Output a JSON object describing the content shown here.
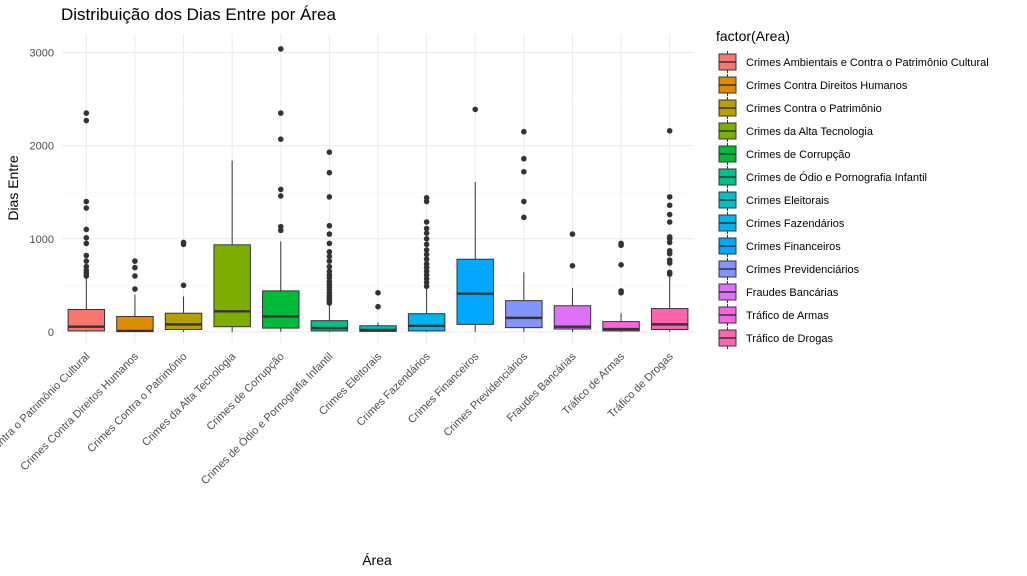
{
  "chart_data": {
    "type": "boxplot",
    "title": "Distribuição dos Dias Entre por Área",
    "xlabel": "Área",
    "ylabel": "Dias Entre",
    "ylim": [
      -120,
      3200
    ],
    "yticks": [
      0,
      1000,
      2000,
      3000
    ],
    "grid": true,
    "legend": {
      "title": "factor(Area)",
      "position": "right"
    },
    "categories": [
      "Crimes Ambientais e Contra o Patrimônio Cultural",
      "Crimes Contra Direitos Humanos",
      "Crimes Contra o Patrimônio",
      "Crimes da Alta Tecnologia",
      "Crimes de Corrupção",
      "Crimes de Ódio e Pornografia Infantil",
      "Crimes Eleitorais",
      "Crimes Fazendários",
      "Crimes Financeiros",
      "Crimes Previdenciários",
      "Fraudes Bancárias",
      "Tráfico de Armas",
      "Tráfico de Drogas"
    ],
    "series": [
      {
        "name": "Crimes Ambientais e Contra o Patrimônio Cultural",
        "color": "#F8766D",
        "min": 0,
        "q1": 10,
        "median": 55,
        "q3": 240,
        "max": 580,
        "outliers": [
          600,
          630,
          660,
          700,
          760,
          820,
          950,
          1010,
          1100,
          1330,
          1400,
          2270,
          2350
        ]
      },
      {
        "name": "Crimes Contra Direitos Humanos",
        "color": "#DE8C00",
        "min": 0,
        "q1": 5,
        "median": 10,
        "q3": 165,
        "max": 400,
        "outliers": [
          460,
          600,
          690,
          760
        ]
      },
      {
        "name": "Crimes Contra o Patrimônio",
        "color": "#B79F00",
        "min": 0,
        "q1": 25,
        "median": 80,
        "q3": 200,
        "max": 380,
        "outliers": [
          500,
          940,
          960
        ]
      },
      {
        "name": "Crimes da Alta Tecnologia",
        "color": "#7CAE00",
        "min": 0,
        "q1": 55,
        "median": 220,
        "q3": 935,
        "max": 1840,
        "outliers": []
      },
      {
        "name": "Crimes de Corrupção",
        "color": "#00BA38",
        "min": 0,
        "q1": 40,
        "median": 165,
        "q3": 440,
        "max": 970,
        "outliers": [
          1090,
          1130,
          1460,
          1530,
          2070,
          2350,
          3040
        ]
      },
      {
        "name": "Crimes de Ódio e Pornografia Infantil",
        "color": "#00C08B",
        "min": 0,
        "q1": 10,
        "median": 40,
        "q3": 120,
        "max": 290,
        "outliers": [
          310,
          330,
          350,
          370,
          390,
          420,
          450,
          480,
          510,
          540,
          580,
          610,
          650,
          700,
          760,
          810,
          860,
          950,
          1050,
          1140,
          1450,
          1710,
          1930
        ]
      },
      {
        "name": "Crimes Eleitorais",
        "color": "#00BFC4",
        "min": 0,
        "q1": 5,
        "median": 20,
        "q3": 65,
        "max": 100,
        "outliers": [
          270,
          420
        ]
      },
      {
        "name": "Crimes Fazendários",
        "color": "#00B4F0",
        "min": 0,
        "q1": 10,
        "median": 65,
        "q3": 195,
        "max": 460,
        "outliers": [
          490,
          530,
          570,
          610,
          650,
          690,
          730,
          780,
          830,
          880,
          940,
          1000,
          1060,
          1110,
          1180,
          1400,
          1440
        ]
      },
      {
        "name": "Crimes Financeiros",
        "color": "#00A9FF",
        "min": 0,
        "q1": 80,
        "median": 410,
        "q3": 780,
        "max": 1610,
        "outliers": [
          2390
        ]
      },
      {
        "name": "Crimes Previdenciários",
        "color": "#8494FF",
        "min": 0,
        "q1": 45,
        "median": 150,
        "q3": 335,
        "max": 640,
        "outliers": [
          1230,
          1400,
          1720,
          1860,
          2150
        ]
      },
      {
        "name": "Fraudes Bancárias",
        "color": "#DF70F8",
        "min": 0,
        "q1": 30,
        "median": 55,
        "q3": 280,
        "max": 470,
        "outliers": [
          710,
          1050
        ]
      },
      {
        "name": "Tráfico de Armas",
        "color": "#F564E3",
        "min": 0,
        "q1": 10,
        "median": 30,
        "q3": 110,
        "max": 200,
        "outliers": [
          420,
          440,
          720,
          930,
          950
        ]
      },
      {
        "name": "Tráfico de Drogas",
        "color": "#FF64B0",
        "min": 0,
        "q1": 25,
        "median": 80,
        "q3": 250,
        "max": 600,
        "outliers": [
          620,
          640,
          740,
          770,
          840,
          870,
          960,
          1000,
          1020,
          1180,
          1260,
          1360,
          1450,
          2160
        ]
      }
    ]
  }
}
